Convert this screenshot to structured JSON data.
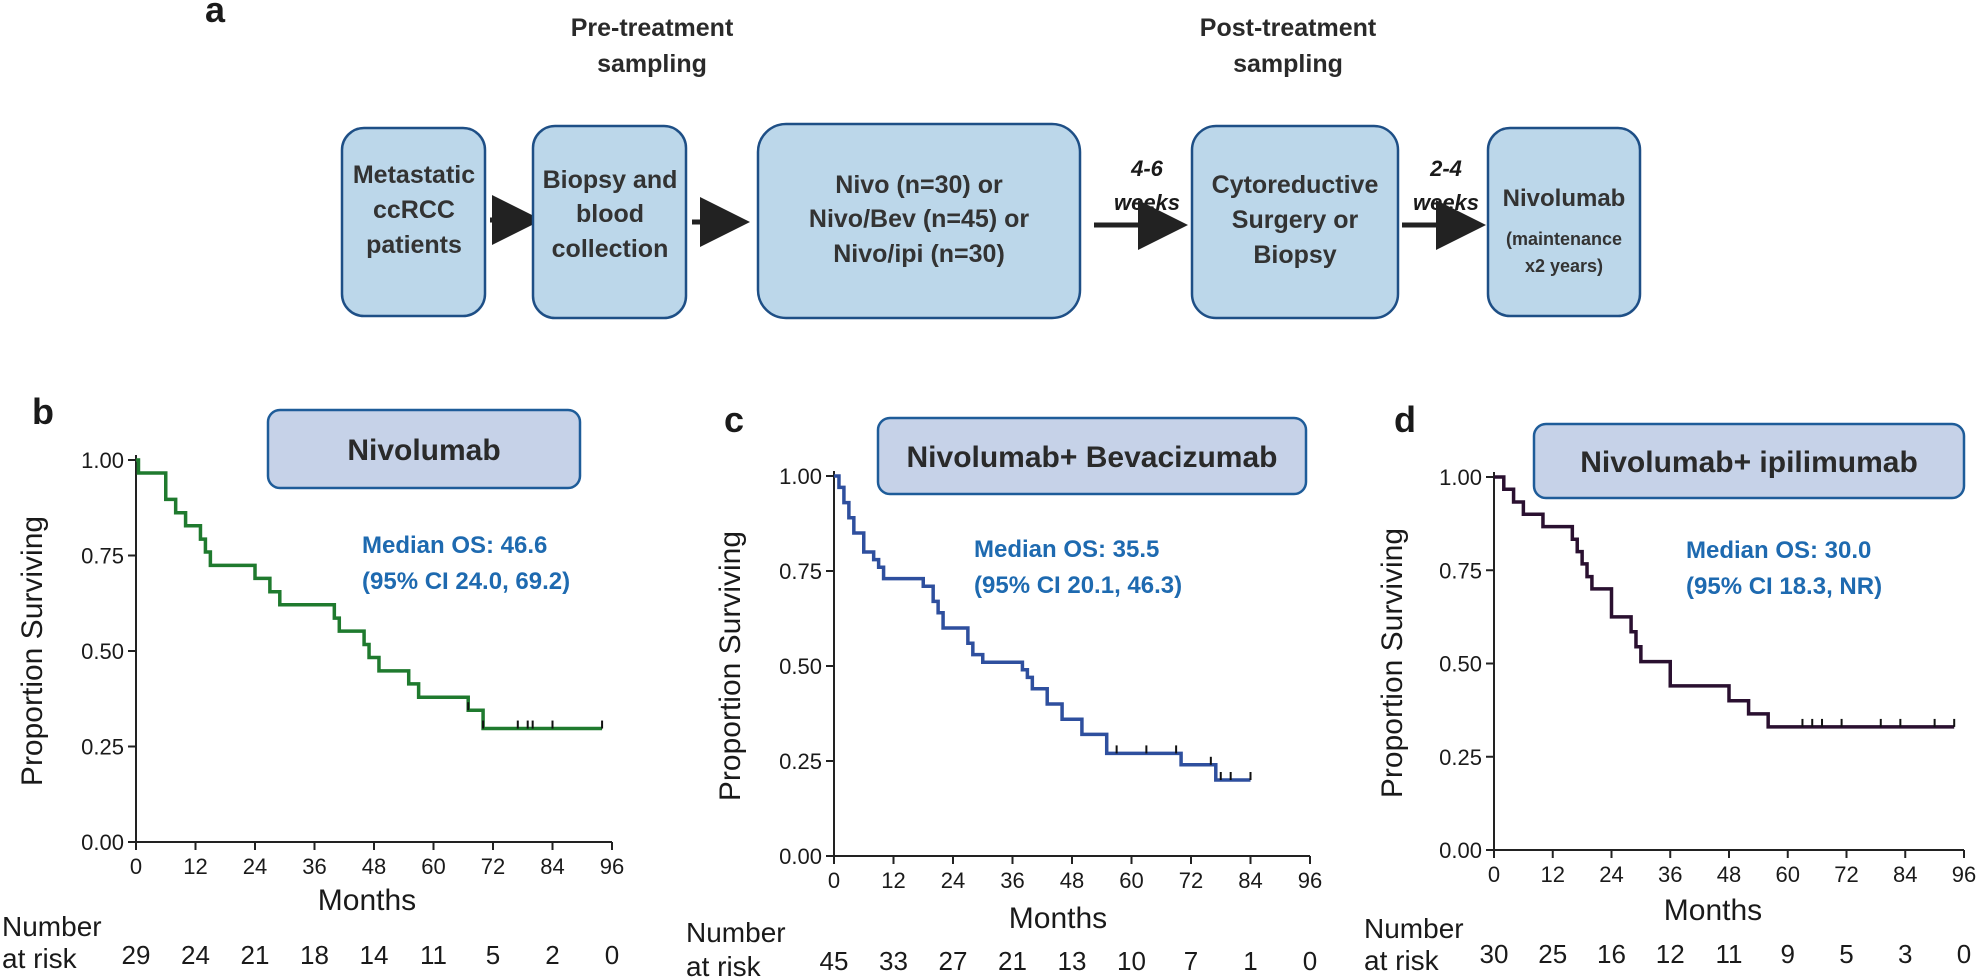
{
  "flow": {
    "panel_label": "a",
    "pre_label": [
      "Pre-treatment",
      "sampling"
    ],
    "post_label": [
      "Post-treatment",
      "sampling"
    ],
    "boxes": [
      [
        "Metastatic",
        "ccRCC",
        "patients"
      ],
      [
        "Biopsy and",
        "blood",
        "collection"
      ],
      [
        "Nivo (n=30) or",
        "Nivo/Bev (n=45) or",
        "Nivo/ipi (n=30)"
      ],
      [
        "Cytoreductive",
        "Surgery or",
        "Biopsy"
      ],
      [
        "Nivolumab",
        "(maintenance",
        "x2 years)"
      ]
    ],
    "arrow_labels": [
      [
        "4-6",
        "weeks"
      ],
      [
        "2-4",
        "weeks"
      ]
    ]
  },
  "risk_labels": [
    "Number",
    "at risk"
  ],
  "chart_data": [
    {
      "type": "line",
      "panel": "b",
      "title": "Nivolumab",
      "median_text": [
        "Median OS: 46.6",
        "(95% CI 24.0, 69.2)"
      ],
      "xlabel": "Months",
      "ylabel": "Proportion Surviving",
      "xlim": [
        0,
        96
      ],
      "ylim": [
        0,
        1
      ],
      "xticks": [
        "0",
        "12",
        "24",
        "36",
        "48",
        "60",
        "72",
        "84",
        "96"
      ],
      "yticks": [
        "0.00",
        "0.25",
        "0.50",
        "0.75",
        "1.00"
      ],
      "color": "#1f7a2e",
      "x": [
        0,
        0.5,
        6,
        8,
        10,
        13,
        14,
        15,
        24,
        27,
        29,
        40,
        41,
        46,
        47,
        49,
        55,
        57,
        61,
        67,
        70,
        94
      ],
      "y": [
        1.0,
        0.966,
        0.897,
        0.862,
        0.828,
        0.793,
        0.759,
        0.724,
        0.69,
        0.655,
        0.621,
        0.586,
        0.552,
        0.517,
        0.483,
        0.448,
        0.414,
        0.379,
        0.379,
        0.345,
        0.297,
        0.297
      ],
      "censor_x": [
        67,
        70,
        77,
        79,
        80,
        84,
        94
      ],
      "risk_table": [
        "29",
        "24",
        "21",
        "18",
        "14",
        "11",
        "5",
        "2",
        "0"
      ]
    },
    {
      "type": "line",
      "panel": "c",
      "title": "Nivolumab+ Bevacizumab",
      "median_text": [
        "Median OS: 35.5",
        "(95% CI 20.1, 46.3)"
      ],
      "xlabel": "Months",
      "ylabel": "Proportion Surviving",
      "xlim": [
        0,
        96
      ],
      "ylim": [
        0,
        1
      ],
      "xticks": [
        "0",
        "12",
        "24",
        "36",
        "48",
        "60",
        "72",
        "84",
        "96"
      ],
      "yticks": [
        "0.00",
        "0.25",
        "0.50",
        "0.75",
        "1.00"
      ],
      "color": "#2e4f9e",
      "x": [
        0,
        1,
        2,
        3,
        4,
        6,
        8,
        9,
        10,
        18,
        20,
        21,
        22,
        27,
        28,
        30,
        38,
        39,
        40,
        43,
        46,
        50,
        55,
        68,
        70,
        77,
        84
      ],
      "y": [
        1.0,
        0.97,
        0.93,
        0.89,
        0.85,
        0.8,
        0.78,
        0.76,
        0.73,
        0.71,
        0.67,
        0.64,
        0.6,
        0.56,
        0.53,
        0.51,
        0.49,
        0.47,
        0.44,
        0.4,
        0.36,
        0.32,
        0.27,
        0.27,
        0.24,
        0.2,
        0.2
      ],
      "censor_x": [
        57,
        63,
        69,
        76,
        78,
        80,
        84
      ],
      "risk_table": [
        "45",
        "33",
        "27",
        "21",
        "13",
        "10",
        "7",
        "1",
        "0"
      ]
    },
    {
      "type": "line",
      "panel": "d",
      "title": "Nivolumab+ ipilimumab",
      "median_text": [
        "Median OS: 30.0",
        "(95% CI 18.3, NR)"
      ],
      "xlabel": "Months",
      "ylabel": "Proportion Surviving",
      "xlim": [
        0,
        96
      ],
      "ylim": [
        0,
        1
      ],
      "xticks": [
        "0",
        "12",
        "24",
        "36",
        "48",
        "60",
        "72",
        "84",
        "96"
      ],
      "yticks": [
        "0.00",
        "0.25",
        "0.50",
        "0.75",
        "1.00"
      ],
      "color": "#2a1030",
      "x": [
        0,
        2,
        4,
        6,
        10,
        16,
        17,
        18,
        19,
        20,
        24,
        28,
        29,
        30,
        36,
        48,
        52,
        56,
        94
      ],
      "y": [
        1.0,
        0.967,
        0.933,
        0.9,
        0.867,
        0.833,
        0.8,
        0.767,
        0.733,
        0.7,
        0.625,
        0.585,
        0.545,
        0.505,
        0.44,
        0.4,
        0.365,
        0.33,
        0.33
      ],
      "censor_x": [
        63,
        65,
        67,
        71,
        79,
        83,
        90,
        94
      ],
      "risk_table": [
        "30",
        "25",
        "16",
        "12",
        "11",
        "9",
        "5",
        "3",
        "0"
      ]
    }
  ]
}
